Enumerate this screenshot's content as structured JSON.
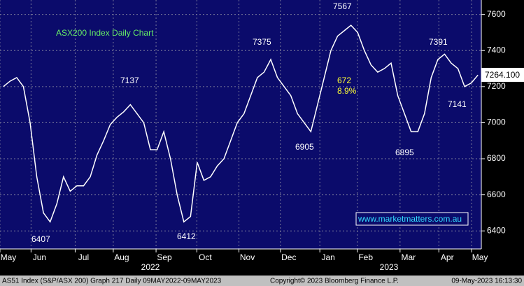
{
  "chart_data": {
    "type": "line",
    "title": "ASX200 Index Daily Chart",
    "color": "#ffffff",
    "values": [
      7200,
      7230,
      7250,
      7200,
      7000,
      6700,
      6500,
      6450,
      6550,
      6700,
      6620,
      6650,
      6650,
      6700,
      6820,
      6900,
      6990,
      7030,
      7060,
      7100,
      7050,
      7000,
      6850,
      6850,
      6950,
      6800,
      6600,
      6450,
      6480,
      6780,
      6680,
      6700,
      6760,
      6800,
      6900,
      7000,
      7050,
      7150,
      7250,
      7280,
      7350,
      7250,
      7200,
      7150,
      7050,
      7000,
      6950,
      7100,
      7250,
      7400,
      7480,
      7510,
      7540,
      7500,
      7400,
      7320,
      7280,
      7300,
      7330,
      7150,
      7050,
      6950,
      6950,
      7050,
      7250,
      7350,
      7380,
      7330,
      7300,
      7200,
      7220,
      7264
    ],
    "xlim": [
      -0.5,
      71.5
    ],
    "xticks": [
      {
        "value": 0.75,
        "label": "May"
      },
      {
        "value": 5.4,
        "label": "Jun"
      },
      {
        "value": 12,
        "label": "Jul"
      },
      {
        "value": 17.7,
        "label": "Aug"
      },
      {
        "value": 24.1,
        "label": "Sep"
      },
      {
        "value": 30.2,
        "label": "Oct"
      },
      {
        "value": 36.5,
        "label": "Nov"
      },
      {
        "value": 42.7,
        "label": "Dec"
      },
      {
        "value": 48.6,
        "label": "Jan"
      },
      {
        "value": 54.2,
        "label": "Feb"
      },
      {
        "value": 60.6,
        "label": "Mar"
      },
      {
        "value": 66.4,
        "label": "Apr"
      },
      {
        "value": 71.3,
        "label": "May"
      }
    ],
    "years": [
      "2022",
      "2023"
    ],
    "ylim": [
      6300,
      7680
    ],
    "yticks": [
      6400,
      6600,
      6800,
      7000,
      7200,
      7400,
      7600
    ],
    "grid": true,
    "last_price": "7264.100",
    "annotations": [
      "6407",
      "7137",
      "6412",
      "7375",
      "6905",
      "7567",
      "672",
      "8.9%",
      "6895",
      "7391",
      "7141"
    ],
    "website": "www.marketmatters.com.au",
    "footer": {
      "left": "AS51 Index (S&P/ASX 200) Graph 217  Daily 09MAY2022-09MAY2023",
      "center": "Copyright© 2023 Bloomberg Finance L.P.",
      "right": "09-May-2023 16:13:30"
    }
  }
}
